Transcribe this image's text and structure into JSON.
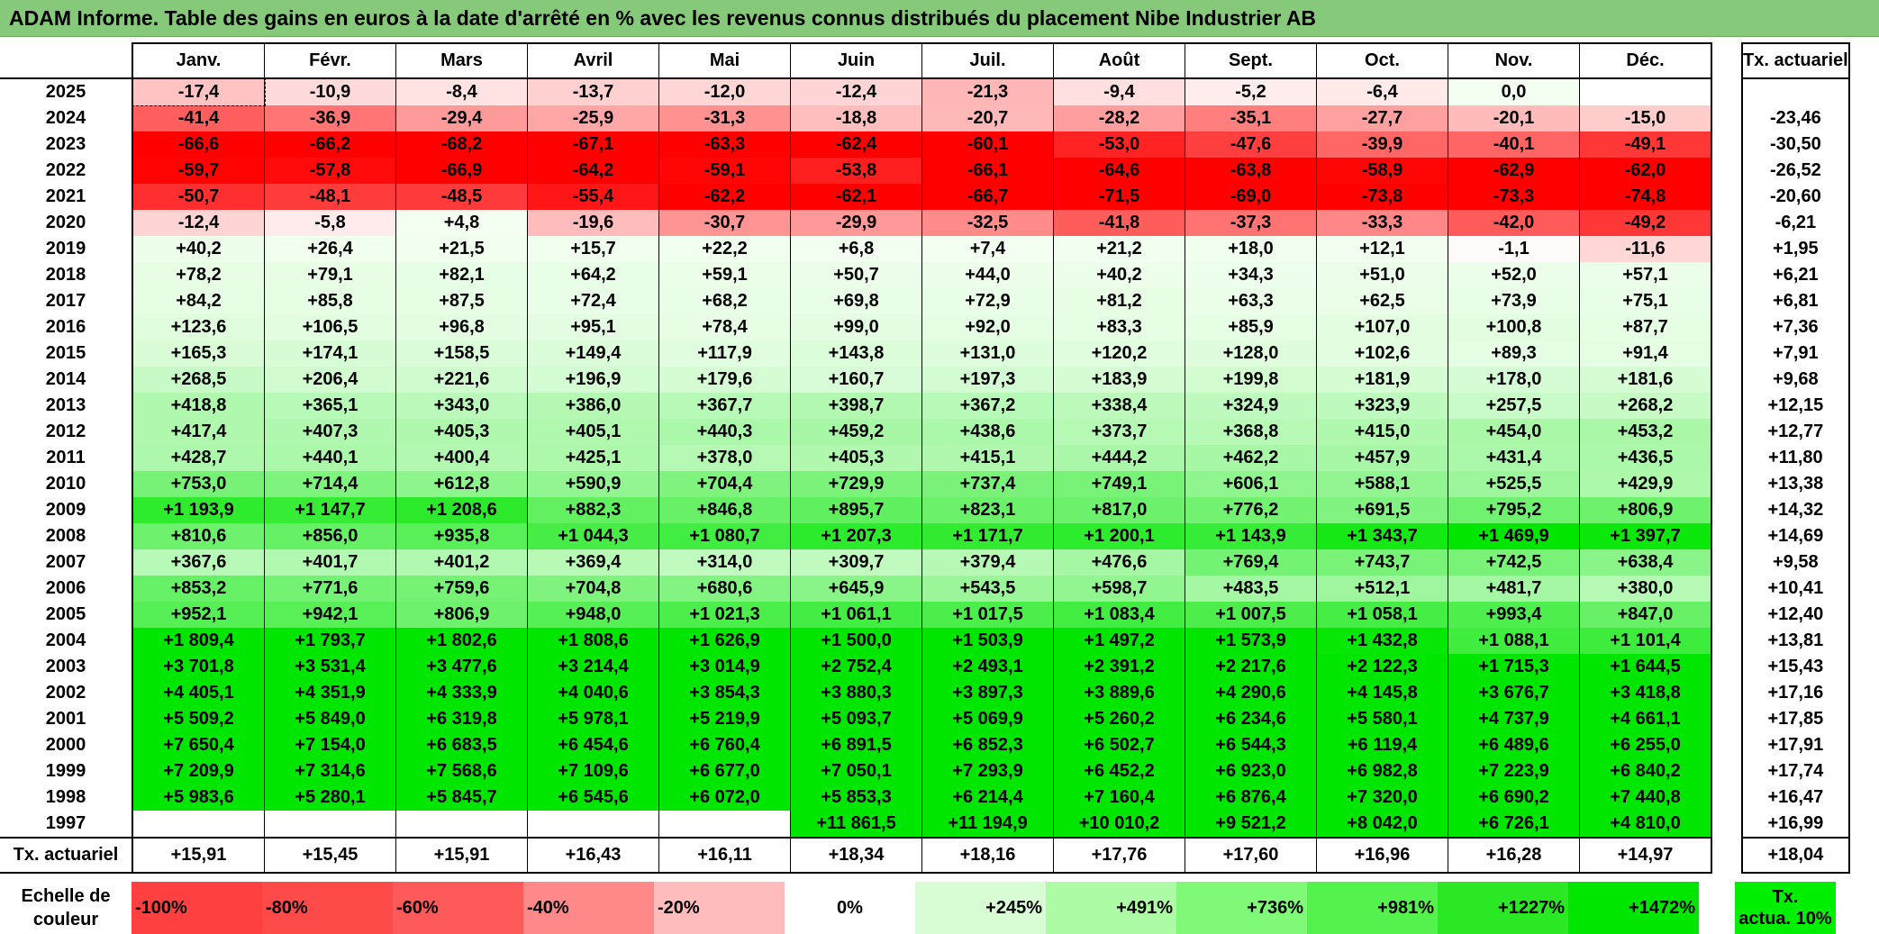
{
  "title": "ADAM Informe. Table des gains en euros à la date d'arrêté en % avec les revenus connus distribués du placement Nibe Industrier AB",
  "header": {
    "year_col": "",
    "months": [
      "Janv.",
      "Févr.",
      "Mars",
      "Avril",
      "Mai",
      "Juin",
      "Juil.",
      "Août",
      "Sept.",
      "Oct.",
      "Nov.",
      "Déc."
    ],
    "tx_col": "Tx. actuariel"
  },
  "rows": [
    {
      "year": "2025",
      "values": [
        "-17,4",
        "-10,9",
        "-8,4",
        "-13,7",
        "-12,0",
        "-12,4",
        "-21,3",
        "-9,4",
        "-5,2",
        "-6,4",
        "0,0",
        ""
      ],
      "tx": ""
    },
    {
      "year": "2024",
      "values": [
        "-41,4",
        "-36,9",
        "-29,4",
        "-25,9",
        "-31,3",
        "-18,8",
        "-20,7",
        "-28,2",
        "-35,1",
        "-27,7",
        "-20,1",
        "-15,0"
      ],
      "tx": "-23,46"
    },
    {
      "year": "2023",
      "values": [
        "-66,6",
        "-66,2",
        "-68,2",
        "-67,1",
        "-63,3",
        "-62,4",
        "-60,1",
        "-53,0",
        "-47,6",
        "-39,9",
        "-40,1",
        "-49,1"
      ],
      "tx": "-30,50"
    },
    {
      "year": "2022",
      "values": [
        "-59,7",
        "-57,8",
        "-66,9",
        "-64,2",
        "-59,1",
        "-53,8",
        "-66,1",
        "-64,6",
        "-63,8",
        "-58,9",
        "-62,9",
        "-62,0"
      ],
      "tx": "-26,52"
    },
    {
      "year": "2021",
      "values": [
        "-50,7",
        "-48,1",
        "-48,5",
        "-55,4",
        "-62,2",
        "-62,1",
        "-66,7",
        "-71,5",
        "-69,0",
        "-73,8",
        "-73,3",
        "-74,8"
      ],
      "tx": "-20,60"
    },
    {
      "year": "2020",
      "values": [
        "-12,4",
        "-5,8",
        "+4,8",
        "-19,6",
        "-30,7",
        "-29,9",
        "-32,5",
        "-41,8",
        "-37,3",
        "-33,3",
        "-42,0",
        "-49,2"
      ],
      "tx": "-6,21"
    },
    {
      "year": "2019",
      "values": [
        "+40,2",
        "+26,4",
        "+21,5",
        "+15,7",
        "+22,2",
        "+6,8",
        "+7,4",
        "+21,2",
        "+18,0",
        "+12,1",
        "-1,1",
        "-11,6"
      ],
      "tx": "+1,95"
    },
    {
      "year": "2018",
      "values": [
        "+78,2",
        "+79,1",
        "+82,1",
        "+64,2",
        "+59,1",
        "+50,7",
        "+44,0",
        "+40,2",
        "+34,3",
        "+51,0",
        "+52,0",
        "+57,1"
      ],
      "tx": "+6,21"
    },
    {
      "year": "2017",
      "values": [
        "+84,2",
        "+85,8",
        "+87,5",
        "+72,4",
        "+68,2",
        "+69,8",
        "+72,9",
        "+81,2",
        "+63,3",
        "+62,5",
        "+73,9",
        "+75,1"
      ],
      "tx": "+6,81"
    },
    {
      "year": "2016",
      "values": [
        "+123,6",
        "+106,5",
        "+96,8",
        "+95,1",
        "+78,4",
        "+99,0",
        "+92,0",
        "+83,3",
        "+85,9",
        "+107,0",
        "+100,8",
        "+87,7"
      ],
      "tx": "+7,36"
    },
    {
      "year": "2015",
      "values": [
        "+165,3",
        "+174,1",
        "+158,5",
        "+149,4",
        "+117,9",
        "+143,8",
        "+131,0",
        "+120,2",
        "+128,0",
        "+102,6",
        "+89,3",
        "+91,4"
      ],
      "tx": "+7,91"
    },
    {
      "year": "2014",
      "values": [
        "+268,5",
        "+206,4",
        "+221,6",
        "+196,9",
        "+179,6",
        "+160,7",
        "+197,3",
        "+183,9",
        "+199,8",
        "+181,9",
        "+178,0",
        "+181,6"
      ],
      "tx": "+9,68"
    },
    {
      "year": "2013",
      "values": [
        "+418,8",
        "+365,1",
        "+343,0",
        "+386,0",
        "+367,7",
        "+398,7",
        "+367,2",
        "+338,4",
        "+324,9",
        "+323,9",
        "+257,5",
        "+268,2"
      ],
      "tx": "+12,15"
    },
    {
      "year": "2012",
      "values": [
        "+417,4",
        "+407,3",
        "+405,3",
        "+405,1",
        "+440,3",
        "+459,2",
        "+438,6",
        "+373,7",
        "+368,8",
        "+415,0",
        "+454,0",
        "+453,2"
      ],
      "tx": "+12,77"
    },
    {
      "year": "2011",
      "values": [
        "+428,7",
        "+440,1",
        "+400,4",
        "+425,1",
        "+378,0",
        "+405,3",
        "+415,1",
        "+444,2",
        "+462,2",
        "+457,9",
        "+431,4",
        "+436,5"
      ],
      "tx": "+11,80"
    },
    {
      "year": "2010",
      "values": [
        "+753,0",
        "+714,4",
        "+612,8",
        "+590,9",
        "+704,4",
        "+729,9",
        "+737,4",
        "+749,1",
        "+606,1",
        "+588,1",
        "+525,5",
        "+429,9"
      ],
      "tx": "+13,38"
    },
    {
      "year": "2009",
      "values": [
        "+1 193,9",
        "+1 147,7",
        "+1 208,6",
        "+882,3",
        "+846,8",
        "+895,7",
        "+823,1",
        "+817,0",
        "+776,2",
        "+691,5",
        "+795,2",
        "+806,9"
      ],
      "tx": "+14,32"
    },
    {
      "year": "2008",
      "values": [
        "+810,6",
        "+856,0",
        "+935,8",
        "+1 044,3",
        "+1 080,7",
        "+1 207,3",
        "+1 171,7",
        "+1 200,1",
        "+1 143,9",
        "+1 343,7",
        "+1 469,9",
        "+1 397,7"
      ],
      "tx": "+14,69"
    },
    {
      "year": "2007",
      "values": [
        "+367,6",
        "+401,7",
        "+401,2",
        "+369,4",
        "+314,0",
        "+309,7",
        "+379,4",
        "+476,6",
        "+769,4",
        "+743,7",
        "+742,5",
        "+638,4"
      ],
      "tx": "+9,58"
    },
    {
      "year": "2006",
      "values": [
        "+853,2",
        "+771,6",
        "+759,6",
        "+704,8",
        "+680,6",
        "+645,9",
        "+543,5",
        "+598,7",
        "+483,5",
        "+512,1",
        "+481,7",
        "+380,0"
      ],
      "tx": "+10,41"
    },
    {
      "year": "2005",
      "values": [
        "+952,1",
        "+942,1",
        "+806,9",
        "+948,0",
        "+1 021,3",
        "+1 061,1",
        "+1 017,5",
        "+1 083,4",
        "+1 007,5",
        "+1 058,1",
        "+993,4",
        "+847,0"
      ],
      "tx": "+12,40"
    },
    {
      "year": "2004",
      "values": [
        "+1 809,4",
        "+1 793,7",
        "+1 802,6",
        "+1 808,6",
        "+1 626,9",
        "+1 500,0",
        "+1 503,9",
        "+1 497,2",
        "+1 573,9",
        "+1 432,8",
        "+1 088,1",
        "+1 101,4"
      ],
      "tx": "+13,81"
    },
    {
      "year": "2003",
      "values": [
        "+3 701,8",
        "+3 531,4",
        "+3 477,6",
        "+3 214,4",
        "+3 014,9",
        "+2 752,4",
        "+2 493,1",
        "+2 391,2",
        "+2 217,6",
        "+2 122,3",
        "+1 715,3",
        "+1 644,5"
      ],
      "tx": "+15,43"
    },
    {
      "year": "2002",
      "values": [
        "+4 405,1",
        "+4 351,9",
        "+4 333,9",
        "+4 040,6",
        "+3 854,3",
        "+3 880,3",
        "+3 897,3",
        "+3 889,6",
        "+4 290,6",
        "+4 145,8",
        "+3 676,7",
        "+3 418,8"
      ],
      "tx": "+17,16"
    },
    {
      "year": "2001",
      "values": [
        "+5 509,2",
        "+5 849,0",
        "+6 319,8",
        "+5 978,1",
        "+5 219,9",
        "+5 093,7",
        "+5 069,9",
        "+5 260,2",
        "+6 234,6",
        "+5 580,1",
        "+4 737,9",
        "+4 661,1"
      ],
      "tx": "+17,85"
    },
    {
      "year": "2000",
      "values": [
        "+7 650,4",
        "+7 154,0",
        "+6 683,5",
        "+6 454,6",
        "+6 760,4",
        "+6 891,5",
        "+6 852,3",
        "+6 502,7",
        "+6 544,3",
        "+6 119,4",
        "+6 489,6",
        "+6 255,0"
      ],
      "tx": "+17,91"
    },
    {
      "year": "1999",
      "values": [
        "+7 209,9",
        "+7 314,6",
        "+7 568,6",
        "+7 109,6",
        "+6 677,0",
        "+7 050,1",
        "+7 293,9",
        "+6 452,2",
        "+6 923,0",
        "+6 982,8",
        "+7 223,9",
        "+6 840,2"
      ],
      "tx": "+17,74"
    },
    {
      "year": "1998",
      "values": [
        "+5 983,6",
        "+5 280,1",
        "+5 845,7",
        "+6 545,6",
        "+6 072,0",
        "+5 853,3",
        "+6 214,4",
        "+7 160,4",
        "+6 876,4",
        "+7 320,0",
        "+6 690,2",
        "+7 440,8"
      ],
      "tx": "+16,47"
    },
    {
      "year": "1997",
      "values": [
        "",
        "",
        "",
        "",
        "",
        "+11 861,5",
        "+11 194,9",
        "+10 010,2",
        "+9 521,2",
        "+8 042,0",
        "+6 726,1",
        "+4 810,0"
      ],
      "tx": "+16,99"
    }
  ],
  "footer": {
    "label": "Tx. actuariel",
    "values": [
      "+15,91",
      "+15,45",
      "+15,91",
      "+16,43",
      "+16,11",
      "+18,34",
      "+18,16",
      "+17,76",
      "+17,60",
      "+16,96",
      "+16,28",
      "+14,97"
    ],
    "tx": "+18,04"
  },
  "scale": {
    "label_line1": "Echelle de",
    "label_line2": "couleur",
    "stops": [
      {
        "label": "-100%",
        "color": "#ff4040",
        "align": "left"
      },
      {
        "label": "-80%",
        "color": "#ff4a4a",
        "align": "left"
      },
      {
        "label": "-60%",
        "color": "#ff5a5a",
        "align": "left"
      },
      {
        "label": "-40%",
        "color": "#ff8888",
        "align": "left"
      },
      {
        "label": "-20%",
        "color": "#ffbcbc",
        "align": "left"
      },
      {
        "label": "0%",
        "color": "#ffffff",
        "align": "center"
      },
      {
        "label": "+245%",
        "color": "#d8fdd4",
        "align": "right"
      },
      {
        "label": "+491%",
        "color": "#aefba6",
        "align": "right"
      },
      {
        "label": "+736%",
        "color": "#80f878",
        "align": "right"
      },
      {
        "label": "+981%",
        "color": "#55f24d",
        "align": "right"
      },
      {
        "label": "+1227%",
        "color": "#2be825",
        "align": "right"
      },
      {
        "label": "+1472%",
        "color": "#00e600",
        "align": "right"
      }
    ],
    "tx_line1": "Tx.",
    "tx_line2": "actua. 10%",
    "tx_color": "#00ee00"
  }
}
